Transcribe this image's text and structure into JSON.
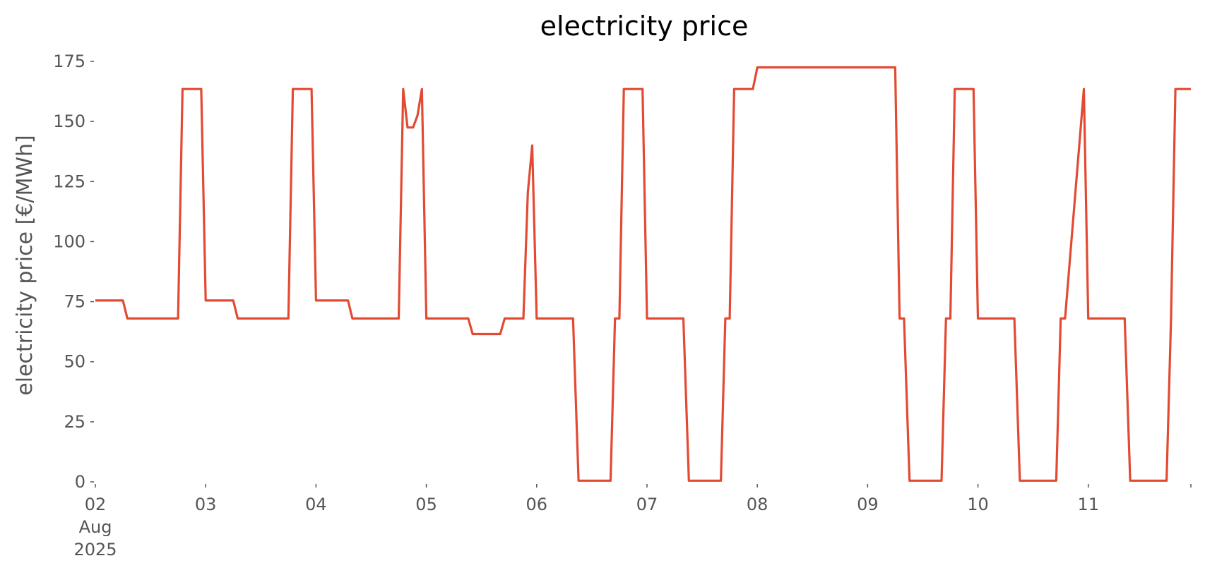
{
  "chart_data": {
    "type": "line",
    "title": "electricity price",
    "xlabel": "",
    "ylabel": "electricity price [€/MWh]",
    "ylim": [
      0,
      175
    ],
    "yticks": [
      0,
      25,
      50,
      75,
      100,
      125,
      150,
      175
    ],
    "xlim": [
      2.0,
      11.93
    ],
    "xticks": [
      {
        "x": 2,
        "label": "02",
        "sublabels": [
          "Aug",
          "2025"
        ]
      },
      {
        "x": 3,
        "label": "03"
      },
      {
        "x": 4,
        "label": "04"
      },
      {
        "x": 5,
        "label": "05"
      },
      {
        "x": 6,
        "label": "06"
      },
      {
        "x": 7,
        "label": "07"
      },
      {
        "x": 8,
        "label": "08"
      },
      {
        "x": 9,
        "label": "09"
      },
      {
        "x": 10,
        "label": "10"
      },
      {
        "x": 11,
        "label": "11"
      }
    ],
    "grid": false,
    "line_color": "#E24A33",
    "series": [
      {
        "x": [
          2.0,
          2.25,
          2.29,
          2.75,
          2.79,
          2.96,
          3.0,
          3.25,
          3.29,
          3.75,
          3.79,
          3.96,
          4.0,
          4.29,
          4.33,
          4.75,
          4.79,
          4.83,
          4.88,
          4.92,
          4.96,
          5.0,
          5.38,
          5.42,
          5.67,
          5.71,
          5.88,
          5.92,
          5.96,
          6.0,
          6.33,
          6.38,
          6.67,
          6.71,
          6.75,
          6.79,
          6.96,
          7.0,
          7.33,
          7.38,
          7.67,
          7.71,
          7.75,
          7.79,
          7.96,
          8.0,
          9.25,
          9.29,
          9.33,
          9.38,
          9.67,
          9.71,
          9.75,
          9.79,
          9.96,
          10.0,
          10.33,
          10.38,
          10.71,
          10.75,
          10.79,
          10.96,
          11.0,
          11.33,
          11.38,
          11.71,
          11.75,
          11.79,
          11.93
        ],
        "y": [
          75.5,
          75.5,
          68.0,
          68.0,
          163.5,
          163.5,
          75.5,
          75.5,
          68.0,
          68.0,
          163.5,
          163.5,
          75.5,
          75.5,
          68.0,
          68.0,
          163.5,
          147.5,
          147.5,
          152.5,
          163.5,
          68.0,
          68.0,
          61.5,
          61.5,
          68.0,
          68.0,
          120.5,
          140.0,
          68.0,
          68.0,
          0.5,
          0.5,
          68.0,
          68.0,
          163.5,
          163.5,
          68.0,
          68.0,
          0.5,
          0.5,
          68.0,
          68.0,
          163.5,
          163.5,
          172.5,
          172.5,
          68.0,
          68.0,
          0.5,
          0.5,
          68.0,
          68.0,
          163.5,
          163.5,
          68.0,
          68.0,
          0.5,
          0.5,
          68.0,
          68.0,
          163.5,
          68.0,
          68.0,
          0.5,
          0.5,
          68.0,
          163.5,
          163.5
        ]
      }
    ]
  }
}
